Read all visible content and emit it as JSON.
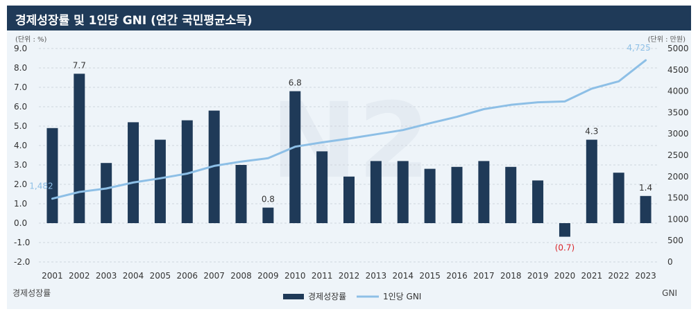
{
  "header": {
    "title": "경제성장률 및 1인당 GNI (연간 국민평균소득)"
  },
  "chart_data": {
    "type": "bar+line",
    "title": "경제성장률 및 1인당 GNI (연간 국민평균소득)",
    "categories": [
      "2001",
      "2002",
      "2003",
      "2004",
      "2005",
      "2006",
      "2007",
      "2008",
      "2009",
      "2010",
      "2011",
      "2012",
      "2013",
      "2014",
      "2015",
      "2016",
      "2017",
      "2018",
      "2019",
      "2020",
      "2021",
      "2022",
      "2023"
    ],
    "series": [
      {
        "name": "경제성장률",
        "type": "bar",
        "axis": "left",
        "color": "#1f3a58",
        "values": [
          4.9,
          7.7,
          3.1,
          5.2,
          4.3,
          5.3,
          5.8,
          3.0,
          0.8,
          6.8,
          3.7,
          2.4,
          3.2,
          3.2,
          2.8,
          2.9,
          3.2,
          2.9,
          2.2,
          -0.7,
          4.3,
          2.6,
          1.4
        ]
      },
      {
        "name": "1인당 GNI",
        "type": "line",
        "axis": "right",
        "color": "#8dbfe6",
        "values": [
          1482,
          1640,
          1720,
          1860,
          1960,
          2070,
          2250,
          2350,
          2430,
          2700,
          2800,
          2890,
          2990,
          3090,
          3250,
          3400,
          3580,
          3680,
          3740,
          3760,
          4060,
          4230,
          4725
        ]
      }
    ],
    "bar_labels": [
      {
        "index": 1,
        "text": "7.7"
      },
      {
        "index": 8,
        "text": "0.8"
      },
      {
        "index": 9,
        "text": "6.8"
      },
      {
        "index": 19,
        "text": "(0.7)",
        "negative": true
      },
      {
        "index": 20,
        "text": "4.3"
      },
      {
        "index": 22,
        "text": "1.4"
      }
    ],
    "line_labels": [
      {
        "index": 0,
        "text": "1,482"
      },
      {
        "index": 22,
        "text": "4,725"
      }
    ],
    "y_left": {
      "unit": "(단위 : %)",
      "min": -2.0,
      "max": 9.0,
      "ticks": [
        "9.0",
        "8.0",
        "7.0",
        "6.0",
        "5.0",
        "4.0",
        "3.0",
        "2.0",
        "1.0",
        "0.0",
        "-1.0",
        "-2.0"
      ]
    },
    "y_right": {
      "unit": "(단위 : 만원)",
      "min": 0,
      "max": 5000,
      "ticks": [
        "5000",
        "4500",
        "4000",
        "3500",
        "3000",
        "2500",
        "2000",
        "1500",
        "1000",
        "500",
        "0"
      ]
    },
    "xlabel_left": "경제성장률",
    "xlabel_right": "GNI",
    "legend": [
      "경제성장률",
      "1인당 GNI"
    ],
    "watermark": "N2"
  }
}
